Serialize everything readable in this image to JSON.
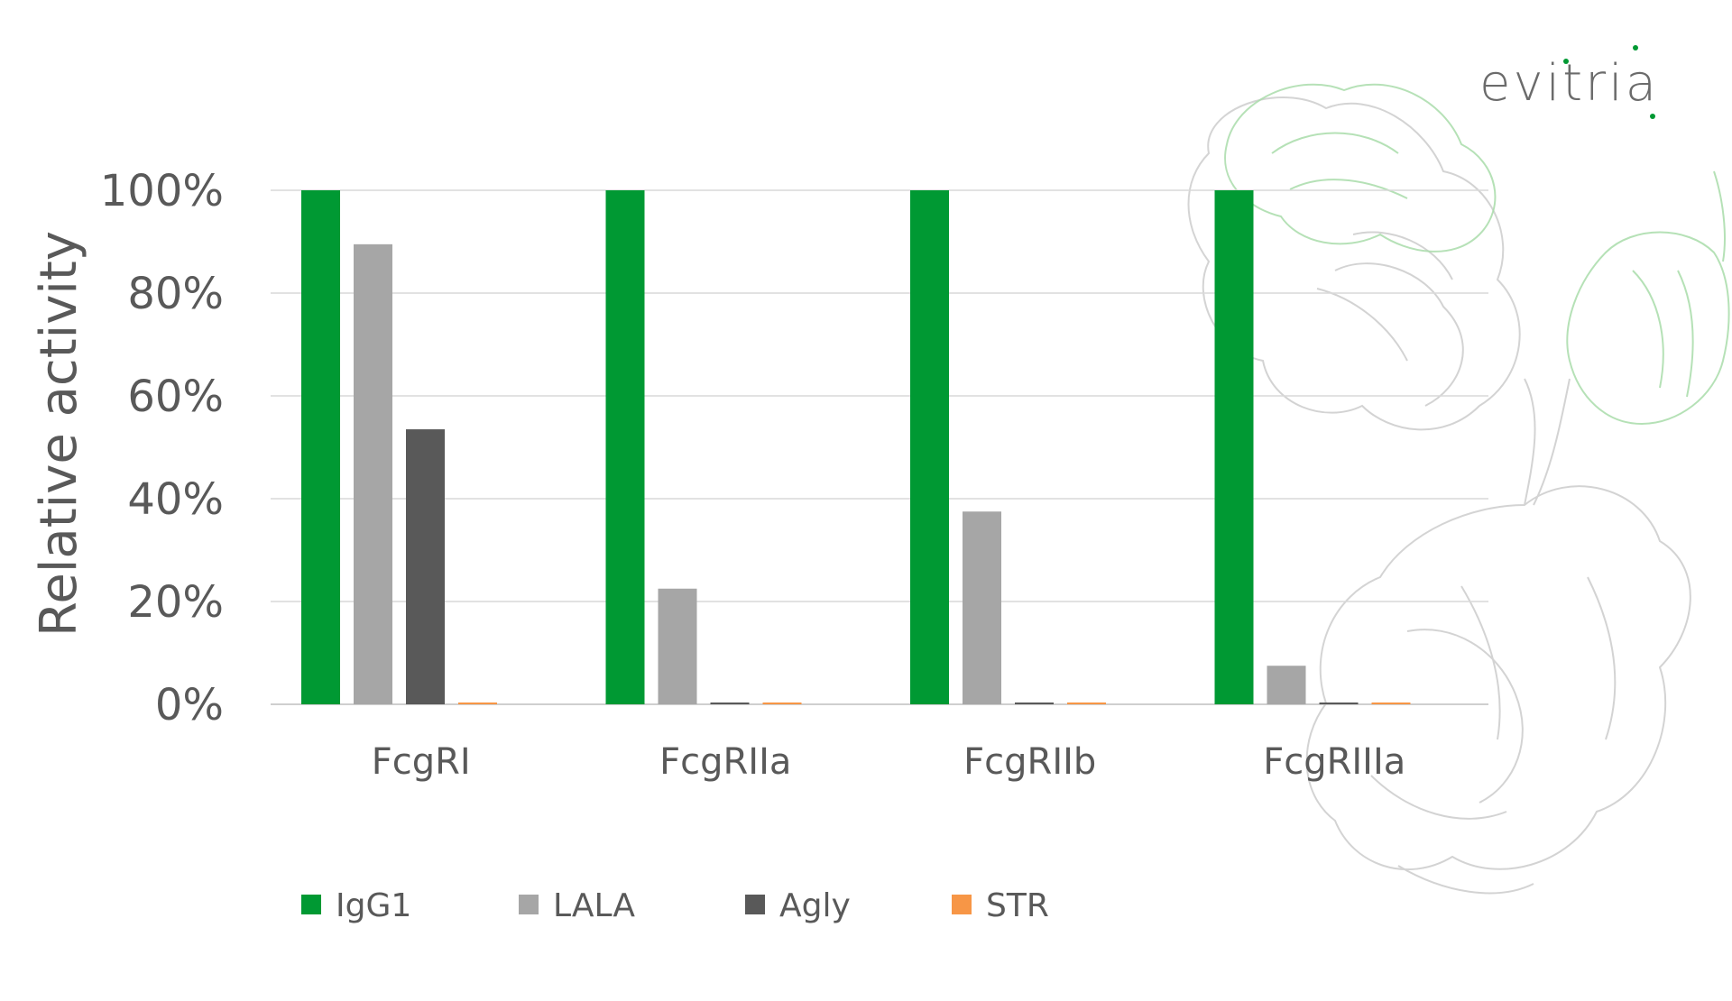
{
  "brand": {
    "logo_text": "evitria",
    "accent_color": "#009933",
    "text_color": "#595959"
  },
  "chart_data": {
    "type": "bar",
    "ylabel": "Relative activity",
    "xlabel": "",
    "ylim": [
      0,
      100
    ],
    "yticks": [
      0,
      20,
      40,
      60,
      80,
      100
    ],
    "ytick_labels": [
      "0%",
      "20%",
      "40%",
      "60%",
      "80%",
      "100%"
    ],
    "grid": true,
    "legend_position": "bottom",
    "categories": [
      "FcgRI",
      "FcgRIIa",
      "FcgRIIb",
      "FcgRIIIa"
    ],
    "series": [
      {
        "name": "IgG1",
        "color": "#009933",
        "values": [
          100,
          100,
          100,
          100
        ]
      },
      {
        "name": "LALA",
        "color": "#a6a6a6",
        "values": [
          89.5,
          22.5,
          37.5,
          7.5
        ]
      },
      {
        "name": "Agly",
        "color": "#595959",
        "values": [
          53.5,
          0.3,
          0.3,
          0.3
        ]
      },
      {
        "name": "STR",
        "color": "#f79646",
        "values": [
          0.3,
          0.3,
          0.3,
          0.3
        ]
      }
    ]
  }
}
